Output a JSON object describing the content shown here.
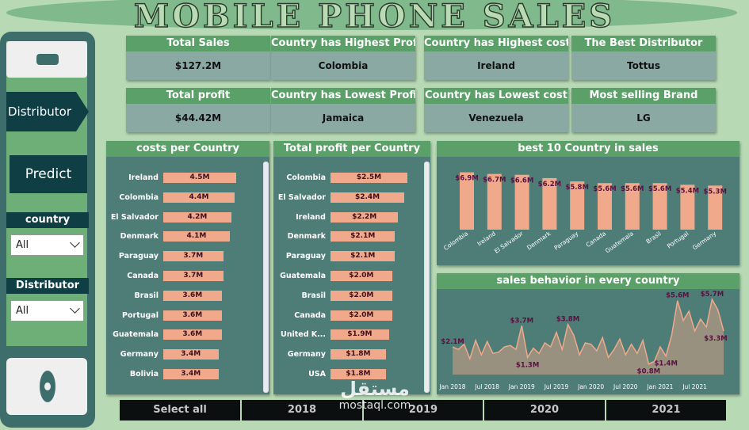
{
  "title": "MOBILE PHONE SALES",
  "nav": {
    "distributor": "Distributor",
    "predict": "Predict"
  },
  "slicers": [
    {
      "label": "country",
      "value": "All"
    },
    {
      "label": "Distributor",
      "value": "All"
    }
  ],
  "cards_row1": [
    {
      "label": "Total Sales",
      "value": "$127.2M"
    },
    {
      "label": "Country has Highest Profit",
      "value": "Colombia"
    },
    {
      "label": "Country has Highest cost",
      "value": "Ireland"
    },
    {
      "label": "The Best Distributor",
      "value": "Tottus"
    }
  ],
  "cards_row2": [
    {
      "label": "Total profit",
      "value": "$44.42M"
    },
    {
      "label": "Country has Lowest Profit",
      "value": "Jamaica"
    },
    {
      "label": "Country has Lowest cost",
      "value": "Venezuela"
    },
    {
      "label": "Most selling Brand",
      "value": "LG"
    }
  ],
  "year_buttons": [
    "Select all",
    "2018",
    "2019",
    "2020",
    "2021"
  ],
  "watermark": {
    "arabic": "مستقل",
    "latin": "mostaql.com"
  },
  "colors": {
    "accent_header": "#5ba068",
    "bar": "#f0a98a",
    "panel": "#4e7d78",
    "background": "#b7d9b4"
  },
  "chart_data": [
    {
      "type": "bar",
      "orientation": "horizontal",
      "title": "costs per Country",
      "categories": [
        "Ireland",
        "Colombia",
        "El Salvador",
        "Denmark",
        "Paraguay",
        "Canada",
        "Brasil",
        "Portugal",
        "Guatemala",
        "Germany",
        "Bolivia"
      ],
      "values": [
        4.5,
        4.4,
        4.2,
        4.1,
        3.7,
        3.7,
        3.6,
        3.6,
        3.6,
        3.4,
        3.4
      ],
      "labels": [
        "4.5M",
        "4.4M",
        "4.2M",
        "4.1M",
        "3.7M",
        "3.7M",
        "3.6M",
        "3.6M",
        "3.6M",
        "3.4M",
        "3.4M"
      ],
      "unit": "M"
    },
    {
      "type": "bar",
      "orientation": "horizontal",
      "title": "Total profit per Country",
      "categories": [
        "Colombia",
        "El Salvador",
        "Ireland",
        "Denmark",
        "Paraguay",
        "Guatemala",
        "Brasil",
        "Canada",
        "United K...",
        "Germany",
        "USA"
      ],
      "values": [
        2.5,
        2.4,
        2.2,
        2.1,
        2.1,
        2.0,
        2.0,
        2.0,
        1.9,
        1.8,
        1.8
      ],
      "labels": [
        "$2.5M",
        "$2.4M",
        "$2.2M",
        "$2.1M",
        "$2.1M",
        "$2.0M",
        "$2.0M",
        "$2.0M",
        "$1.9M",
        "$1.8M",
        "$1.8M"
      ],
      "unit": "$M"
    },
    {
      "type": "bar",
      "title": "best 10 Country in sales",
      "categories": [
        "Colombia",
        "Ireland",
        "El Salvador",
        "Denmark",
        "Paraguay",
        "Canada",
        "Guatemala",
        "Brasil",
        "Portugal",
        "Germany"
      ],
      "values": [
        6.9,
        6.7,
        6.6,
        6.2,
        5.8,
        5.6,
        5.6,
        5.6,
        5.4,
        5.3
      ],
      "labels": [
        "$6.9M",
        "$6.7M",
        "$6.6M",
        "$6.2M",
        "$5.8M",
        "$5.6M",
        "$5.6M",
        "$5.6M",
        "$5.4M",
        "$5.3M"
      ],
      "unit": "$M"
    },
    {
      "type": "area",
      "title": "sales behavior in every country",
      "x_ticks": [
        "Jan 2018",
        "Jul 2018",
        "Jan 2019",
        "Jul 2019",
        "Jan 2020",
        "Jul 2020",
        "Jan 2021",
        "Jul 2021"
      ],
      "x": [
        "2018-01",
        "2018-02",
        "2018-03",
        "2018-04",
        "2018-05",
        "2018-06",
        "2018-07",
        "2018-08",
        "2018-09",
        "2018-10",
        "2018-11",
        "2018-12",
        "2019-01",
        "2019-02",
        "2019-03",
        "2019-04",
        "2019-05",
        "2019-06",
        "2019-07",
        "2019-08",
        "2019-09",
        "2019-10",
        "2019-11",
        "2019-12",
        "2020-01",
        "2020-02",
        "2020-03",
        "2020-04",
        "2020-05",
        "2020-06",
        "2020-07",
        "2020-08",
        "2020-09",
        "2020-10",
        "2020-11",
        "2020-12",
        "2021-01",
        "2021-02",
        "2021-03",
        "2021-04",
        "2021-05",
        "2021-06",
        "2021-07",
        "2021-08",
        "2021-09",
        "2021-10",
        "2021-11",
        "2021-12"
      ],
      "values": [
        2.1,
        1.9,
        2.3,
        1.2,
        2.6,
        1.5,
        2.5,
        1.6,
        1.7,
        2.1,
        2.2,
        1.9,
        3.7,
        1.3,
        2.0,
        1.6,
        2.4,
        2.1,
        3.2,
        1.9,
        3.8,
        3.0,
        1.5,
        2.4,
        2.3,
        1.8,
        2.8,
        1.3,
        1.9,
        2.7,
        1.5,
        2.3,
        1.6,
        2.6,
        0.8,
        1.0,
        2.1,
        1.4,
        3.0,
        5.6,
        4.1,
        4.8,
        3.3,
        4.2,
        3.6,
        5.7,
        4.9,
        3.3
      ],
      "annotations": [
        {
          "x": "2018-01",
          "label": "$2.1M"
        },
        {
          "x": "2019-01",
          "label": "$3.7M"
        },
        {
          "x": "2019-02",
          "label": "$1.3M"
        },
        {
          "x": "2019-09",
          "label": "$3.8M"
        },
        {
          "x": "2020-11",
          "label": "$0.8M"
        },
        {
          "x": "2021-02",
          "label": "$1.4M"
        },
        {
          "x": "2021-04",
          "label": "$5.6M"
        },
        {
          "x": "2021-10",
          "label": "$5.7M"
        },
        {
          "x": "2021-12",
          "label": "$3.3M"
        }
      ],
      "unit": "$M",
      "ylim": [
        0,
        6
      ]
    }
  ]
}
